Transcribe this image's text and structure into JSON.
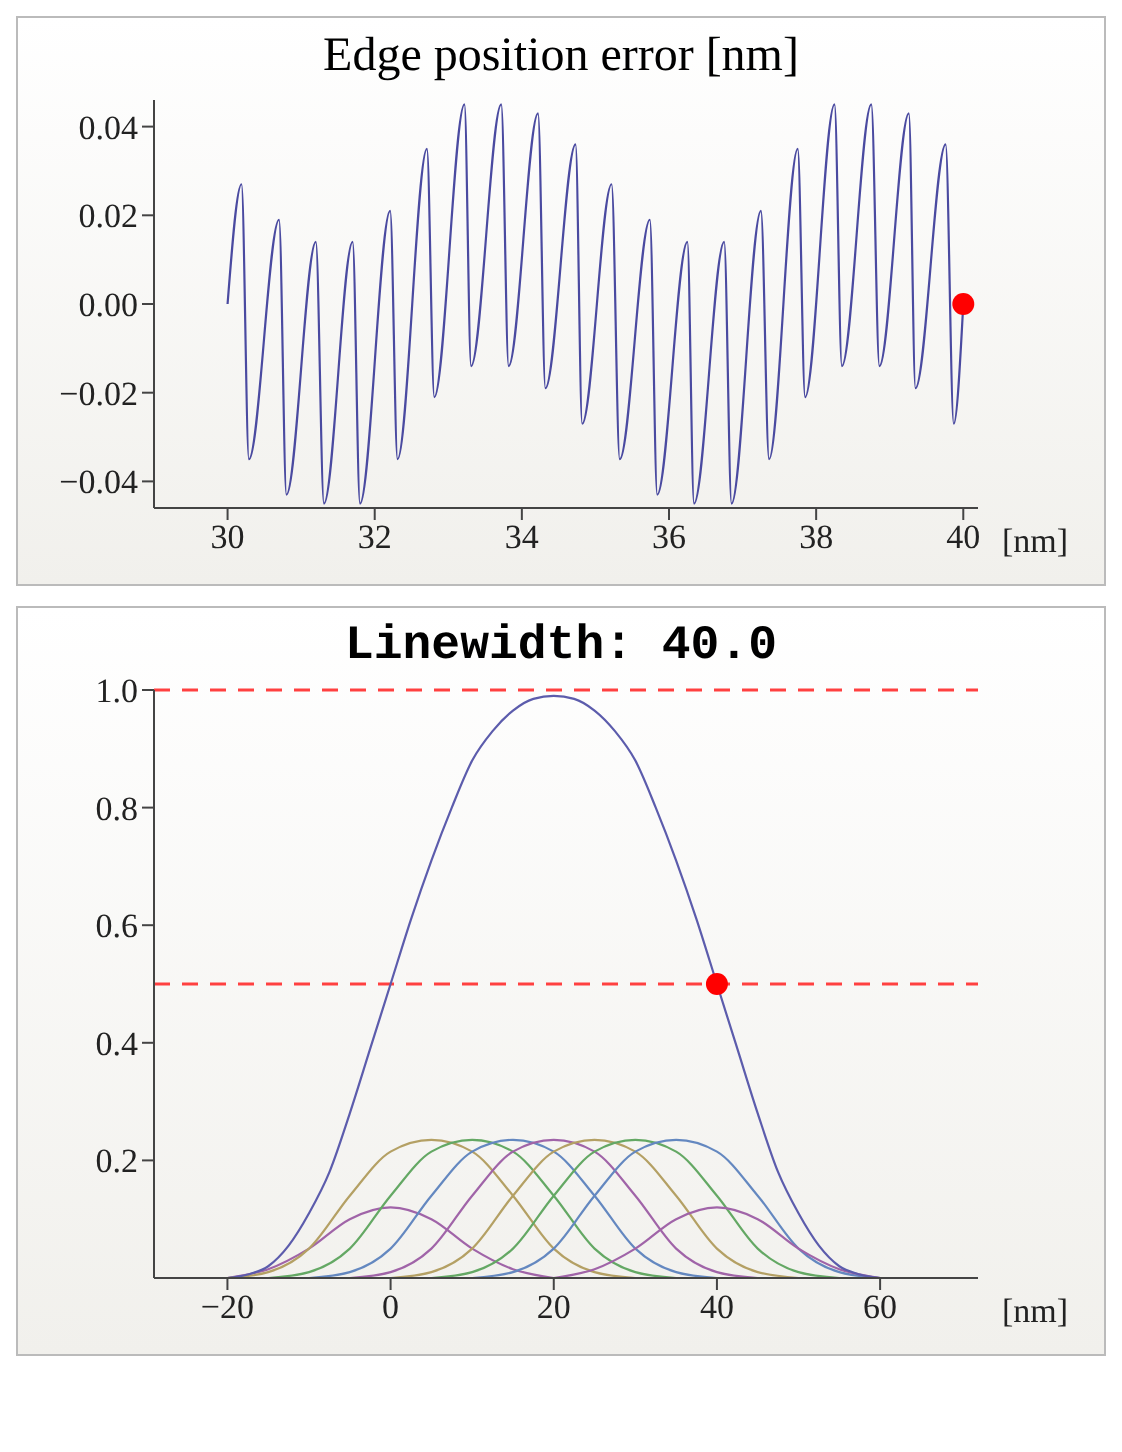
{
  "chart_data": [
    {
      "type": "line",
      "title": "Edge position error [nm]",
      "xlabel": "[nm]",
      "xlim": [
        29,
        40.2
      ],
      "xticks": [
        30,
        32,
        34,
        36,
        38,
        40
      ],
      "ylim": [
        -0.046,
        0.046
      ],
      "yticks": [
        {
          "value": -0.04,
          "label": "−0.04"
        },
        {
          "value": -0.02,
          "label": "−0.02"
        },
        {
          "value": 0,
          "label": "0.00"
        },
        {
          "value": 0.02,
          "label": "0.02"
        },
        {
          "value": 0.04,
          "label": "0.04"
        }
      ],
      "series": [
        {
          "color": "#4a4aa0",
          "x": [
            30,
            30.19,
            30.29,
            30.7,
            30.8,
            31.2,
            31.31,
            31.7,
            31.8,
            32.21,
            32.31,
            32.71,
            32.81,
            33.22,
            33.31,
            33.72,
            33.82,
            34.22,
            34.32,
            34.73,
            34.82,
            35.22,
            35.33,
            35.74,
            35.84,
            36.25,
            36.34,
            36.75,
            36.85,
            37.25,
            37.36,
            37.75,
            37.85,
            38.25,
            38.35,
            38.75,
            38.86,
            39.26,
            39.35,
            39.76,
            39.87,
            40
          ],
          "values": [
            0,
            0.027,
            -0.035,
            0.019,
            -0.043,
            0.014,
            -0.045,
            0.014,
            -0.045,
            0.021,
            -0.035,
            0.035,
            -0.021,
            0.045,
            -0.014,
            0.045,
            -0.014,
            0.043,
            -0.019,
            0.036,
            -0.027,
            0.027,
            -0.035,
            0.019,
            -0.043,
            0.014,
            -0.045,
            0.014,
            -0.045,
            0.021,
            -0.035,
            0.035,
            -0.021,
            0.045,
            -0.014,
            0.045,
            -0.014,
            0.043,
            -0.019,
            0.036,
            -0.027,
            0
          ]
        },
        {
          "type": "scatter",
          "color": "#ff0000",
          "x": [
            40
          ],
          "values": [
            0
          ]
        }
      ]
    },
    {
      "type": "line",
      "title": "Linewidth: 40.0",
      "xlabel": "[nm]",
      "xlim": [
        -29,
        72
      ],
      "xticks": [
        {
          "value": -20,
          "label": "−20"
        },
        0,
        20,
        40,
        60
      ],
      "ylim": [
        0,
        1
      ],
      "yticks": [
        0.2,
        0.4,
        0.6,
        0.8,
        {
          "value": 1,
          "label": "1.0"
        }
      ],
      "ref_lines": [
        {
          "axis": "y",
          "value": 1,
          "color": "#ff4040",
          "line_style": "dashed"
        },
        {
          "axis": "y",
          "value": 0.5,
          "color": "#ff4040",
          "line_style": "dashed"
        }
      ],
      "series": [
        {
          "color": "#a064a8",
          "x": [
            -20,
            -15,
            -10,
            -5,
            0,
            5,
            10,
            15,
            20
          ],
          "values": [
            0,
            0.015,
            0.05,
            0.1,
            0.12,
            0.1,
            0.05,
            0.015,
            0
          ]
        },
        {
          "color": "#b4a064",
          "x": [
            -20,
            -15,
            -10,
            -5,
            0,
            5,
            10,
            15,
            20,
            25,
            30
          ],
          "values": [
            0,
            0.01,
            0.05,
            0.14,
            0.215,
            0.235,
            0.215,
            0.14,
            0.05,
            0.01,
            0
          ]
        },
        {
          "color": "#64a864",
          "x": [
            -15,
            -10,
            -5,
            0,
            5,
            10,
            15,
            20,
            25,
            30,
            35
          ],
          "values": [
            0,
            0.01,
            0.05,
            0.14,
            0.215,
            0.235,
            0.215,
            0.14,
            0.05,
            0.01,
            0
          ]
        },
        {
          "color": "#6488c0",
          "x": [
            -10,
            -5,
            0,
            5,
            10,
            15,
            20,
            25,
            30,
            35,
            40
          ],
          "values": [
            0,
            0.01,
            0.05,
            0.14,
            0.215,
            0.235,
            0.215,
            0.14,
            0.05,
            0.01,
            0
          ]
        },
        {
          "color": "#a064a8",
          "x": [
            -5,
            0,
            5,
            10,
            15,
            20,
            25,
            30,
            35,
            40,
            45
          ],
          "values": [
            0,
            0.01,
            0.05,
            0.14,
            0.215,
            0.235,
            0.215,
            0.14,
            0.05,
            0.01,
            0
          ]
        },
        {
          "color": "#b4a064",
          "x": [
            0,
            5,
            10,
            15,
            20,
            25,
            30,
            35,
            40,
            45,
            50
          ],
          "values": [
            0,
            0.01,
            0.05,
            0.14,
            0.215,
            0.235,
            0.215,
            0.14,
            0.05,
            0.01,
            0
          ]
        },
        {
          "color": "#64a864",
          "x": [
            5,
            10,
            15,
            20,
            25,
            30,
            35,
            40,
            45,
            50,
            55
          ],
          "values": [
            0,
            0.01,
            0.05,
            0.14,
            0.215,
            0.235,
            0.215,
            0.14,
            0.05,
            0.01,
            0
          ]
        },
        {
          "color": "#6488c0",
          "x": [
            10,
            15,
            20,
            25,
            30,
            35,
            40,
            45,
            50,
            55,
            60
          ],
          "values": [
            0,
            0.01,
            0.05,
            0.14,
            0.215,
            0.235,
            0.215,
            0.14,
            0.05,
            0.01,
            0
          ]
        },
        {
          "color": "#a064a8",
          "x": [
            20,
            25,
            30,
            35,
            40,
            45,
            50,
            55,
            60
          ],
          "values": [
            0,
            0.015,
            0.05,
            0.1,
            0.12,
            0.1,
            0.05,
            0.015,
            0
          ]
        },
        {
          "color": "#5c5cac",
          "x": [
            -20,
            -17.5,
            -15,
            -12.5,
            -10,
            -7.5,
            -5,
            -2.5,
            0,
            2.5,
            5,
            7.5,
            10,
            12.5,
            15,
            17.5,
            20,
            22.5,
            25,
            27.5,
            30,
            32.5,
            35,
            37.5,
            40,
            42.5,
            45,
            47.5,
            50,
            52.5,
            55,
            57.5,
            60
          ],
          "values": [
            0,
            0.006,
            0.02,
            0.055,
            0.11,
            0.18,
            0.28,
            0.39,
            0.5,
            0.61,
            0.71,
            0.8,
            0.88,
            0.93,
            0.965,
            0.985,
            0.99,
            0.985,
            0.965,
            0.93,
            0.88,
            0.8,
            0.71,
            0.61,
            0.5,
            0.39,
            0.28,
            0.18,
            0.11,
            0.055,
            0.02,
            0.006,
            0
          ]
        },
        {
          "type": "scatter",
          "color": "#ff0000",
          "x": [
            40
          ],
          "values": [
            0.5
          ]
        }
      ]
    }
  ]
}
